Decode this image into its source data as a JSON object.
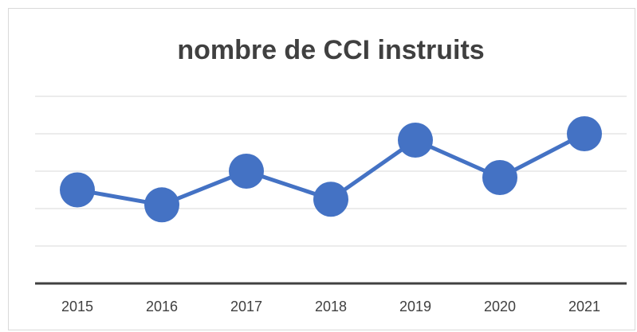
{
  "chart_data": {
    "type": "line",
    "title": "nombre de CCI instruits",
    "categories": [
      "2015",
      "2016",
      "2017",
      "2018",
      "2019",
      "2020",
      "2021"
    ],
    "series": [
      {
        "name": "nombre de CCI instruits",
        "color": "#4472c4",
        "values": [
          45,
          41,
          50,
          42.5,
          58.3,
          48.3,
          60
        ]
      }
    ],
    "ylim": [
      20,
      70
    ],
    "yticks": [
      20,
      30,
      40,
      50,
      60,
      70
    ],
    "grid": true
  }
}
